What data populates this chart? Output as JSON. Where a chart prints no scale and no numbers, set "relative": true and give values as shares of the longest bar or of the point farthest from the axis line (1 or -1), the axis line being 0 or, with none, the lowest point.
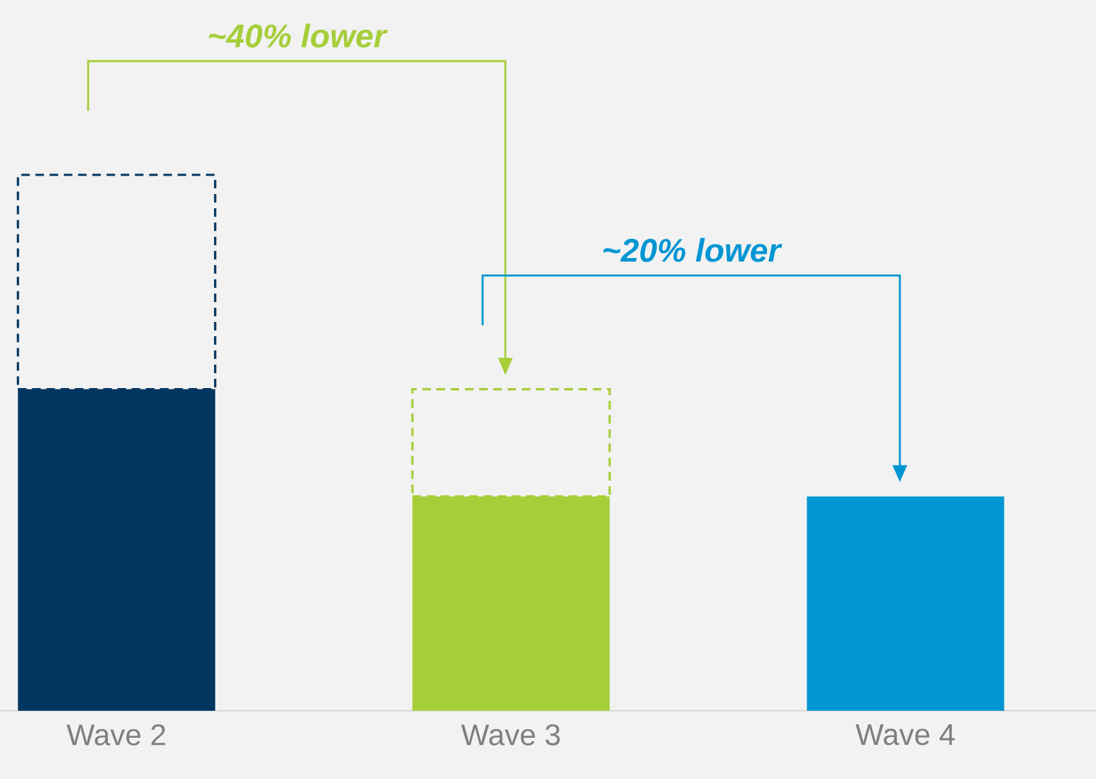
{
  "chart_data": {
    "type": "bar",
    "stacked": true,
    "relative": true,
    "categories": [
      "Wave 2",
      "Wave 3",
      "Wave 4"
    ],
    "series": [
      {
        "colors": [
          "#003660",
          "#a6ce39",
          "#0095d3"
        ],
        "values": [
          0.6,
          0.4,
          0.4
        ]
      },
      {
        "colors": [
          "#003660",
          "#a6ce39",
          null
        ],
        "line_style": "dashed",
        "values": [
          0.4,
          0.2,
          null
        ]
      }
    ],
    "annotations": [
      "~40% lower",
      "~20% lower"
    ]
  }
}
